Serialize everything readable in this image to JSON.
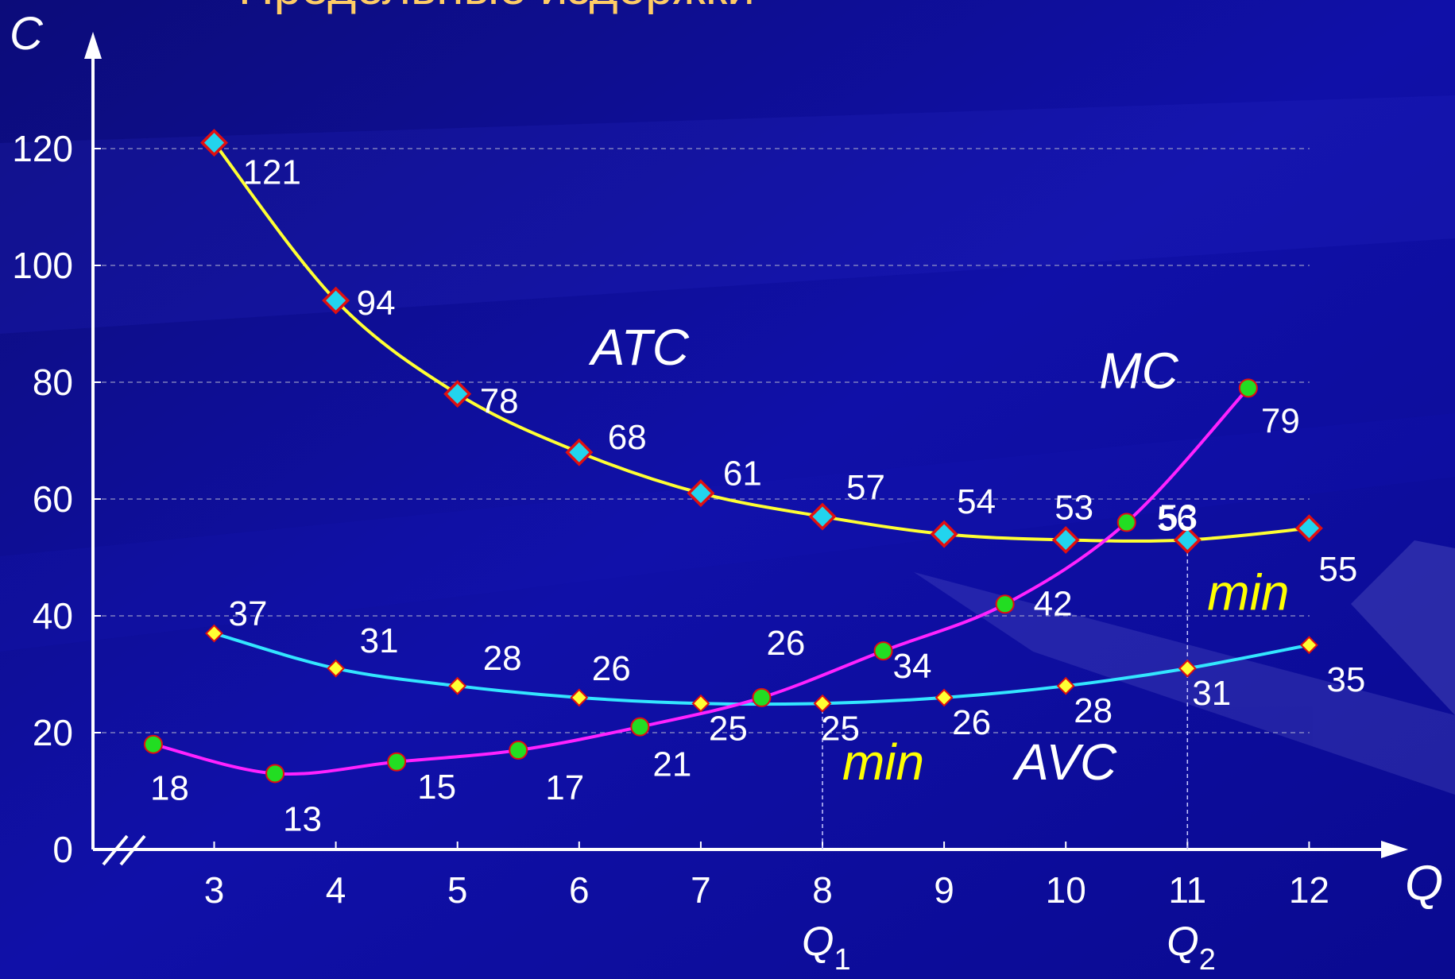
{
  "title": "Предельные издержки",
  "chart_data": {
    "type": "line",
    "xlabel": "Q",
    "ylabel": "C",
    "xlim": [
      2.5,
      12
    ],
    "ylim": [
      0,
      120
    ],
    "x_ticks": [
      3,
      4,
      5,
      6,
      7,
      8,
      9,
      10,
      11,
      12
    ],
    "y_ticks": [
      0,
      20,
      40,
      60,
      80,
      100,
      120
    ],
    "grid": "horizontal-dashed",
    "series": [
      {
        "name": "ATC",
        "color": "#ffff33",
        "marker": "diamond-cyan",
        "x": [
          3,
          4,
          5,
          6,
          7,
          8,
          9,
          10,
          11,
          12
        ],
        "values": [
          121,
          94,
          78,
          68,
          61,
          57,
          54,
          53,
          53,
          55
        ]
      },
      {
        "name": "AVC",
        "color": "#33e6ff",
        "marker": "diamond-yellow",
        "x": [
          3,
          4,
          5,
          6,
          7,
          8,
          9,
          10,
          11,
          12
        ],
        "values": [
          37,
          31,
          28,
          26,
          25,
          25,
          26,
          28,
          31,
          35
        ]
      },
      {
        "name": "MC",
        "color": "#ff22ff",
        "marker": "circle-green",
        "x": [
          2.5,
          3.5,
          4.5,
          5.5,
          6.5,
          7.5,
          8.5,
          9.5,
          10.5,
          11.5
        ],
        "values": [
          18,
          13,
          15,
          17,
          21,
          26,
          34,
          42,
          56,
          79
        ]
      }
    ],
    "annotations": [
      {
        "text": "min",
        "x": 8.5,
        "y": 12
      },
      {
        "text": "min",
        "x": 11.5,
        "y": 41
      },
      {
        "text": "Q",
        "sub": "1",
        "x": 8
      },
      {
        "text": "Q",
        "sub": "2",
        "x": 11
      }
    ],
    "series_labels": [
      {
        "text": "ATC",
        "x": 6.5,
        "y": 83
      },
      {
        "text": "AVC",
        "x": 10,
        "y": 12
      },
      {
        "text": "MC",
        "x": 10.6,
        "y": 79
      }
    ]
  }
}
